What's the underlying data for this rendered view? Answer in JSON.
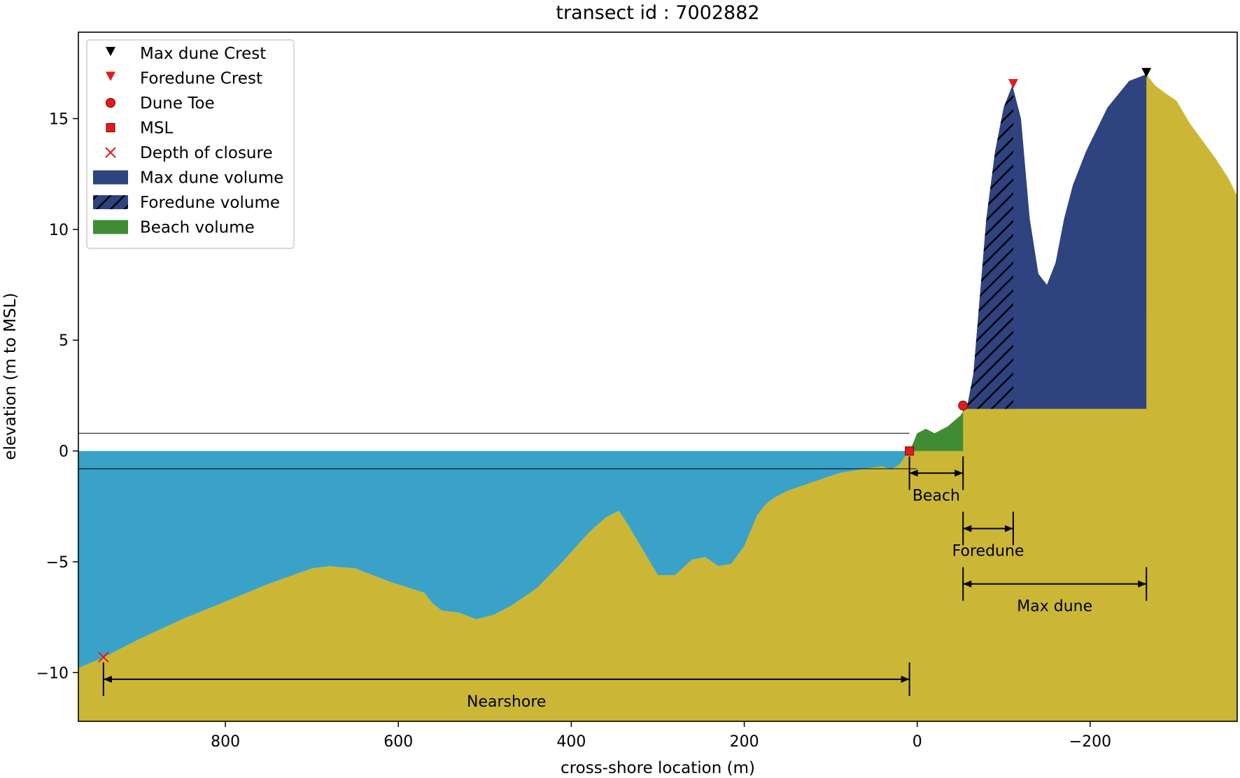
{
  "chart_data": {
    "type": "area",
    "title": "transect id : 7002882",
    "xlabel": "cross-shore location (m)",
    "ylabel": "elevation (m to MSL)",
    "xlim": [
      970,
      -370
    ],
    "ylim": [
      -12.2,
      18.9
    ],
    "x_inverted": true,
    "xticks": [
      800,
      600,
      400,
      200,
      0,
      -200
    ],
    "xtick_labels": [
      "800",
      "600",
      "400",
      "200",
      "0",
      "−200"
    ],
    "yticks": [
      15,
      10,
      5,
      0,
      -5,
      -10
    ],
    "ytick_labels": [
      "15",
      "10",
      "5",
      "0",
      "−5",
      "−10"
    ],
    "grid": false,
    "legend": {
      "position": "top-left",
      "entries": [
        {
          "label": "Max dune Crest",
          "marker": "triangle-down",
          "color": "#000000"
        },
        {
          "label": "Foredune Crest",
          "marker": "triangle-down",
          "color": "#e41a1c"
        },
        {
          "label": "Dune Toe",
          "marker": "circle",
          "color": "#e41a1c"
        },
        {
          "label": "MSL",
          "marker": "square",
          "color": "#e41a1c"
        },
        {
          "label": "Depth of closure",
          "marker": "x",
          "color": "#e41a1c"
        },
        {
          "label": "Max dune volume",
          "marker": "patch",
          "color": "#2e4380"
        },
        {
          "label": "Foredune volume",
          "marker": "hatched-patch",
          "color": "#2e4380"
        },
        {
          "label": "Beach volume",
          "marker": "patch",
          "color": "#3f8c35"
        }
      ]
    },
    "colors": {
      "sand": "#cbb735",
      "water": "#3aa2c8",
      "max_dune": "#2e4380",
      "beach": "#3f8c35",
      "marker_red": "#e41a1c",
      "black": "#000000"
    },
    "profile": {
      "x": [
        970,
        940,
        900,
        850,
        800,
        750,
        700,
        680,
        650,
        610,
        570,
        560,
        550,
        530,
        510,
        490,
        470,
        440,
        410,
        380,
        360,
        345,
        335,
        300,
        280,
        260,
        245,
        230,
        215,
        200,
        185,
        175,
        165,
        150,
        120,
        90,
        60,
        40,
        30,
        20,
        15,
        8,
        0,
        -10,
        -20,
        -35,
        -50,
        -58,
        -65,
        -80,
        -90,
        -100,
        -110,
        -120,
        -130,
        -140,
        -150,
        -160,
        -170,
        -180,
        -195,
        -220,
        -245,
        -265,
        -275,
        -285,
        -300,
        -315,
        -330,
        -345,
        -360,
        -370
      ],
      "y": [
        -9.8,
        -9.3,
        -8.5,
        -7.6,
        -6.8,
        -6.0,
        -5.3,
        -5.2,
        -5.3,
        -5.9,
        -6.4,
        -6.9,
        -7.2,
        -7.3,
        -7.6,
        -7.4,
        -7.0,
        -6.2,
        -5.0,
        -3.7,
        -3.0,
        -2.7,
        -3.3,
        -5.6,
        -5.6,
        -4.9,
        -4.8,
        -5.2,
        -5.1,
        -4.3,
        -2.9,
        -2.4,
        -2.1,
        -1.8,
        -1.4,
        -1.0,
        -0.8,
        -0.7,
        -0.85,
        -0.6,
        -0.3,
        0.05,
        0.8,
        1.0,
        0.8,
        1.1,
        1.6,
        2.05,
        3.5,
        10.5,
        13.5,
        15.5,
        16.5,
        15.0,
        10.5,
        8.0,
        7.5,
        8.5,
        10.5,
        12.0,
        13.5,
        15.5,
        16.7,
        17.0,
        16.5,
        16.2,
        15.8,
        14.8,
        14.0,
        13.2,
        12.3,
        11.5
      ],
      "max_dune_toe_level": 1.9,
      "high_water_line": 0.8,
      "low_water_line": -0.8
    },
    "points": {
      "max_dune_crest": {
        "x": -265,
        "y": 17.0
      },
      "foredune_crest": {
        "x": -111,
        "y": 16.5
      },
      "dune_toe": {
        "x": -53,
        "y": 2.05
      },
      "msl": {
        "x": 9,
        "y": 0.0
      },
      "depth_of_closure": {
        "x": 941,
        "y": -9.3
      }
    },
    "volumes": {
      "beach": {
        "x_from": 9,
        "x_to": -53,
        "base": 0
      },
      "foredune": {
        "x_from": -53,
        "x_to": -111,
        "base": 1.9
      },
      "max_dune": {
        "x_from": -53,
        "x_to": -265,
        "base": 1.9
      }
    },
    "annotations": [
      {
        "label": "Beach",
        "x_from": 9,
        "x_to": -53,
        "y": -1.0
      },
      {
        "label": "Foredune",
        "x_from": -53,
        "x_to": -111,
        "y": -3.5
      },
      {
        "label": "Max dune",
        "x_from": -53,
        "x_to": -265,
        "y": -6.0
      },
      {
        "label": "Nearshore",
        "x_from": 941,
        "x_to": 9,
        "y": -10.3
      }
    ]
  }
}
